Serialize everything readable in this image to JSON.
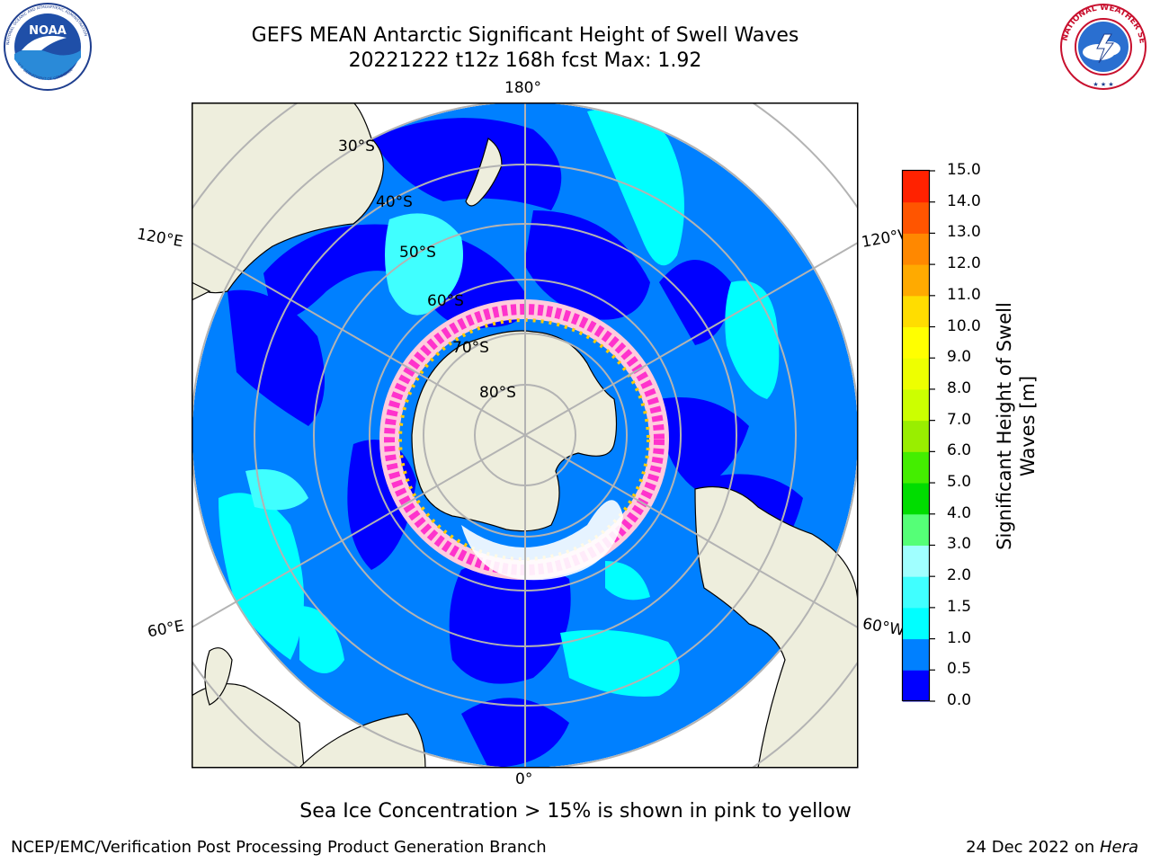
{
  "header": {
    "title_line1": "GEFS MEAN Antarctic Significant Height of Swell Waves",
    "title_line2": "20221222 t12z 168h fcst   Max: 1.92"
  },
  "logos": {
    "left": "noaa-logo",
    "left_text": "NOAA",
    "left_ring_text": "NATIONAL OCEANIC AND ATMOSPHERIC ADMINISTRATION · U.S. DEPARTMENT OF COMMERCE",
    "right": "nws-logo",
    "right_ring_text": "NATIONAL WEATHER SERVICE"
  },
  "map": {
    "projection": "south-polar-stereographic",
    "longitude_labels": [
      "180°",
      "120°E",
      "120°W",
      "60°E",
      "60°W",
      "0°"
    ],
    "latitude_labels": [
      "30°S",
      "40°S",
      "50°S",
      "60°S",
      "70°S",
      "80°S"
    ],
    "max_value": 1.92,
    "colors": {
      "ocean_low": "#0000ff",
      "ocean_mid": "#0080ff",
      "swell_1_1p5": "#00ffff",
      "land": "#eeeedd",
      "grid": "#b3b3b3",
      "sea_ice_pink": "#ff33cc",
      "sea_ice_yellow": "#ffcc00"
    }
  },
  "colorbar": {
    "label_line1": "Significant Height of Swell",
    "label_line2": "Waves [m]",
    "ticks": [
      "0.0",
      "0.5",
      "1.0",
      "1.5",
      "2.0",
      "3.0",
      "4.0",
      "5.0",
      "6.0",
      "7.0",
      "8.0",
      "9.0",
      "10.0",
      "11.0",
      "12.0",
      "13.0",
      "14.0",
      "15.0"
    ],
    "colors": [
      "#0000ff",
      "#0080ff",
      "#00ffff",
      "#40ffff",
      "#a0ffff",
      "#55ff77",
      "#00dd00",
      "#44ee00",
      "#99ee00",
      "#ccff00",
      "#eeff00",
      "#ffff00",
      "#ffdd00",
      "#ffaa00",
      "#ff8800",
      "#ff5500",
      "#ff2200"
    ]
  },
  "caption": "Sea Ice Concentration > 15% is shown in pink to yellow",
  "footer": {
    "left": "NCEP/EMC/Verification Post Processing Product Generation Branch",
    "right_prefix": "24 Dec 2022 on ",
    "right_host": "Hera"
  }
}
